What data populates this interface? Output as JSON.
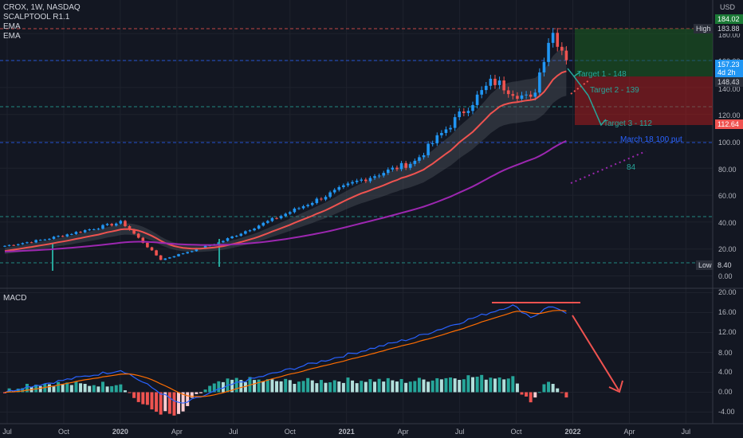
{
  "header": {
    "symbol": "CROX, 1W, NASDAQ",
    "indicators": [
      "SCALPTOOL R1.1",
      "EMA",
      "EMA"
    ],
    "currency": "USD"
  },
  "macd_label": "MACD",
  "colors": {
    "background": "#131722",
    "grid": "#1e222d",
    "up": "#2196f3",
    "down": "#ef5350",
    "up_alt": "#26a69a",
    "ema_fast": "#ef5350",
    "ema_slow": "#9c27b0",
    "macd": "#2962ff",
    "signal": "#ff6d00",
    "target_zone": "#1b5e20",
    "stop_zone": "#b71c1c",
    "annotation": "#26a69a",
    "guide_teal": "#26a69a",
    "guide_blue": "#2962ff"
  },
  "badges": {
    "high_label": "High",
    "high_value": "183.88",
    "low_label": "Low",
    "low_value": "8.40",
    "price_top": "184.02",
    "price_current": "157.23",
    "countdown": "4d 2h",
    "price_entry": "148.43",
    "price_stop": "112.64"
  },
  "annotations": {
    "target1": "Target 1 - 148",
    "target2": "Target 2 - 139",
    "target3": "Target 3 - 112",
    "put_note": "March 18 100 put",
    "level_84": "84"
  },
  "chart_data": {
    "type": "candlestick",
    "x_tick_labels": [
      "Jul",
      "Oct",
      "2020",
      "Apr",
      "Jul",
      "Oct",
      "2021",
      "Apr",
      "Jul",
      "Oct",
      "2022",
      "Apr",
      "Jul"
    ],
    "y_tick_labels": [
      "180.00",
      "160.00",
      "140.00",
      "120.00",
      "100.00",
      "80.00",
      "60.00",
      "40.00",
      "20.00",
      "0.00"
    ],
    "macd_tick_labels": [
      "20.00",
      "16.00",
      "12.00",
      "8.00",
      "4.00",
      "0.00",
      "-4.00"
    ],
    "price_key_points": [
      {
        "date": "2019-06",
        "close": 20
      },
      {
        "date": "2019-09",
        "close": 27
      },
      {
        "date": "2020-01",
        "close": 40
      },
      {
        "date": "2020-03",
        "close": 12
      },
      {
        "date": "2020-06",
        "close": 25
      },
      {
        "date": "2020-10",
        "close": 50
      },
      {
        "date": "2021-01",
        "close": 70
      },
      {
        "date": "2021-04",
        "close": 85
      },
      {
        "date": "2021-06",
        "close": 115
      },
      {
        "date": "2021-08",
        "close": 145
      },
      {
        "date": "2021-10",
        "close": 130
      },
      {
        "date": "2021-11",
        "close": 183
      },
      {
        "date": "2021-12",
        "close": 157
      }
    ],
    "levels": {
      "high": 183.88,
      "low": 8.4,
      "target1": 148,
      "target2": 139,
      "target3": 112,
      "put_strike": 100
    },
    "macd_key_points": [
      {
        "date": "2019-08",
        "macd": 1
      },
      {
        "date": "2020-01",
        "macd": 4.5
      },
      {
        "date": "2020-04",
        "macd": -2.5
      },
      {
        "date": "2020-07",
        "macd": 2
      },
      {
        "date": "2021-01",
        "macd": 8
      },
      {
        "date": "2021-04",
        "macd": 11
      },
      {
        "date": "2021-09",
        "macd": 17.5
      },
      {
        "date": "2021-10",
        "macd": 15
      },
      {
        "date": "2021-11",
        "macd": 17.5
      },
      {
        "date": "2021-12",
        "macd": 15
      }
    ]
  }
}
